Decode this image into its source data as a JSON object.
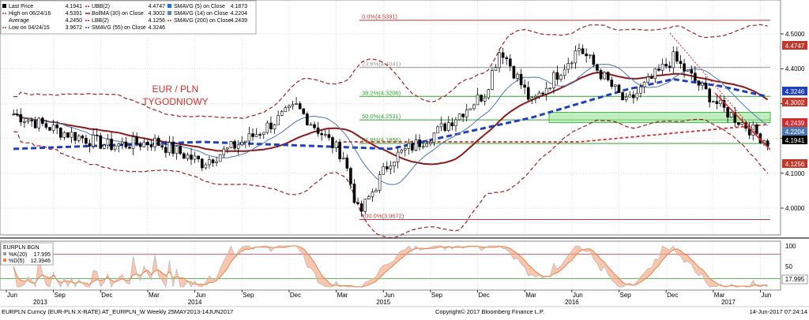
{
  "legend": {
    "col1": [
      {
        "swatch": "box-black",
        "label": "Last Price",
        "value": "4.1941"
      },
      {
        "swatch": "dash-red",
        "label": "High on 06/24/16",
        "value": "4.5391"
      },
      {
        "swatch": "none",
        "label": "Average",
        "value": "4.2450"
      },
      {
        "swatch": "dash-red",
        "label": "Low on 04/24/15",
        "value": "3.9672"
      }
    ],
    "col2": [
      {
        "swatch": "dash-darkred",
        "label": "UBB(2)",
        "value": "4.4747"
      },
      {
        "swatch": "line-darkred",
        "label": "BollMA (30) on Close",
        "value": "4.3002"
      },
      {
        "swatch": "dash-darkred",
        "label": "LBB(2)",
        "value": "4.1256"
      },
      {
        "swatch": "dash-blue",
        "label": "SMAVG (55) on Close",
        "value": "4.3246"
      }
    ],
    "col3": [
      {
        "swatch": "box-blue",
        "label": "SMAVG (5) on Close",
        "value": "4.1873"
      },
      {
        "swatch": "box-steel",
        "label": "SMAVG (14) on Close",
        "value": "4.2204"
      },
      {
        "swatch": "dash-red",
        "label": "SMAVG (200) on Close",
        "value": "4.2439"
      }
    ]
  },
  "annotation": {
    "line1": "EUR / PLN",
    "line2": "TYGODNIOWY"
  },
  "fib_labels": [
    {
      "text": "0.0%(4.5391)",
      "price": 4.5391,
      "color": "#c23b3b"
    },
    {
      "text": "23.6%(4.4041)",
      "price": 4.4041,
      "color": "#9a9a9a"
    },
    {
      "text": "38.2%(4.3206)",
      "price": 4.3206,
      "color": "#2aa52a"
    },
    {
      "text": "50.0%(4.2531)",
      "price": 4.2531,
      "color": "#2aa52a"
    },
    {
      "text": "61.8%(4.1856)",
      "price": 4.1856,
      "color": "#2aa52a"
    },
    {
      "text": "100.0%(3.9672)",
      "price": 3.9672,
      "color": "#c23b3b"
    }
  ],
  "price_ticks": [
    "4.5000",
    "4.4000",
    "4.3000",
    "4.2000",
    "4.1000",
    "4.0000"
  ],
  "price_badges": [
    {
      "value": "4.4747",
      "color": "#c0392b"
    },
    {
      "value": "4.3246",
      "color": "#1f3fbf"
    },
    {
      "value": "4.3002",
      "color": "#c0392b"
    },
    {
      "value": "4.2439",
      "color": "#d62b2b"
    },
    {
      "value": "4.2204",
      "color": "#4a78b0"
    },
    {
      "value": "4.1941",
      "color": "#000000"
    },
    {
      "value": "4.1256",
      "color": "#c0392b"
    }
  ],
  "sub_panel": {
    "title": "EURPLN BGN",
    "rows": [
      {
        "label": "%K(20)",
        "value": "17.995",
        "color": "#9a9a9a"
      },
      {
        "label": "%D(5)",
        "value": "12.3946",
        "color": "#f08040"
      }
    ],
    "ticks": [
      "100",
      "50"
    ],
    "badge": "17.995"
  },
  "x_months": [
    "Jun",
    "Sep",
    "Dec",
    "Mar",
    "Jun",
    "Sep",
    "Dec",
    "Mar",
    "Jun",
    "Sep",
    "Dec",
    "Mar",
    "Jun",
    "Sep",
    "Dec",
    "Mar",
    "Jun"
  ],
  "x_years": [
    "2013",
    "2014",
    "2015",
    "2016",
    "2017"
  ],
  "footer": {
    "left": "EURPLN Curncy (EUR-PLN X-RATE) AT_EURPLN_W  Weekly 25MAY2013-14JUN2017",
    "center": "Copyright© 2017 Bloomberg Finance L.P.",
    "right": "14-Jun-2017 07:24:14"
  },
  "chart_data": {
    "type": "line",
    "title": "",
    "xlabel": "",
    "ylabel": "",
    "ylim": [
      3.95,
      4.56
    ],
    "series": [
      {
        "name": "Last Price",
        "points": [
          [
            "2013-06",
            4.27
          ],
          [
            "2013-09",
            4.22
          ],
          [
            "2013-12",
            4.18
          ],
          [
            "2014-03",
            4.19
          ],
          [
            "2014-06",
            4.13
          ],
          [
            "2014-09",
            4.2
          ],
          [
            "2014-12",
            4.29
          ],
          [
            "2015-03",
            4.15
          ],
          [
            "2015-04",
            3.98
          ],
          [
            "2015-06",
            4.14
          ],
          [
            "2015-09",
            4.22
          ],
          [
            "2015-12",
            4.33
          ],
          [
            "2016-01",
            4.46
          ],
          [
            "2016-03",
            4.3
          ],
          [
            "2016-06",
            4.46
          ],
          [
            "2016-09",
            4.3
          ],
          [
            "2016-12",
            4.43
          ],
          [
            "2017-03",
            4.29
          ],
          [
            "2017-06",
            4.19
          ]
        ]
      },
      {
        "name": "SMAVG (55) on Close",
        "points": [
          [
            "2013-06",
            4.17
          ],
          [
            "2014-06",
            4.19
          ],
          [
            "2015-06",
            4.17
          ],
          [
            "2016-03",
            4.26
          ],
          [
            "2016-09",
            4.34
          ],
          [
            "2016-12",
            4.37
          ],
          [
            "2017-03",
            4.35
          ],
          [
            "2017-06",
            4.32
          ]
        ]
      },
      {
        "name": "SMAVG (200) on Close",
        "points": [
          [
            "2015-03",
            4.19
          ],
          [
            "2016-06",
            4.19
          ],
          [
            "2017-06",
            4.24
          ]
        ]
      }
    ]
  }
}
